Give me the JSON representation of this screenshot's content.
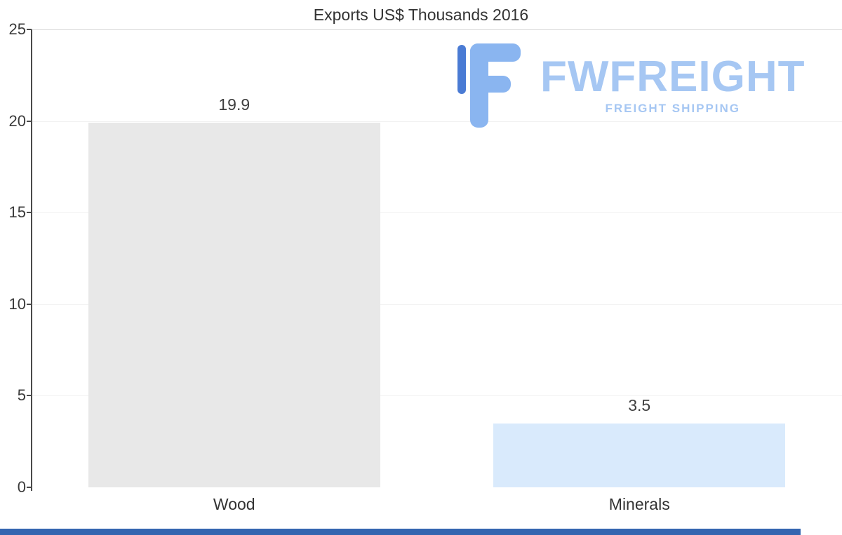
{
  "title": "Exports US$ Thousands 2016",
  "chart_data": {
    "type": "bar",
    "title": "Exports US$ Thousands 2016",
    "categories": [
      "Wood",
      "Minerals"
    ],
    "values": [
      19.9,
      3.5
    ],
    "value_labels": [
      "19.9",
      "3.5"
    ],
    "xlabel": "",
    "ylabel": "",
    "ylim": [
      0,
      25
    ],
    "yticks": [
      0,
      5,
      10,
      15,
      20,
      25
    ],
    "bar_colors": [
      "#e8e8e8",
      "#d9eafc"
    ],
    "grid": "horizontal",
    "legend": "none"
  },
  "logo": {
    "name": "FWFREIGHT",
    "tagline": "FREIGHT SHIPPING",
    "color": "#a6c7f3",
    "icon": "fwfreight-f-mark"
  },
  "colors": {
    "accent_strip": "#3465b0",
    "axis": "#4a4a4a",
    "icon_light_blue": "#8ab5f0",
    "icon_dark_blue": "#4a7bd4"
  }
}
